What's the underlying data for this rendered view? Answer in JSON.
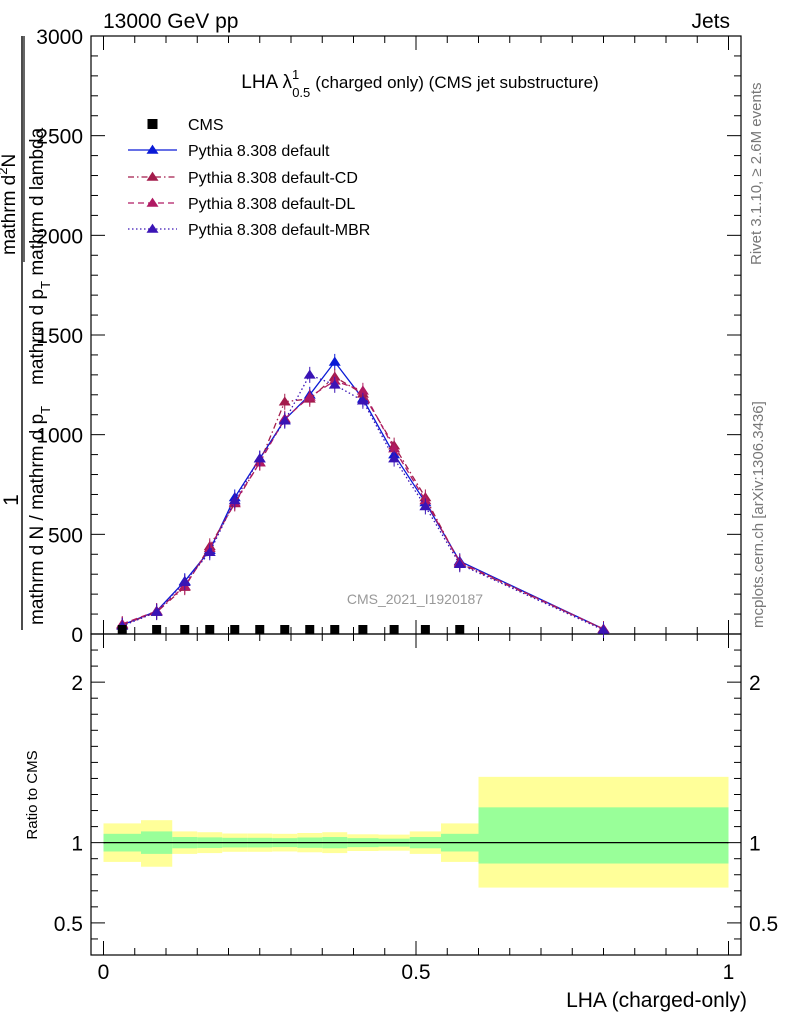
{
  "header": {
    "left": "13000 GeV pp",
    "right": "Jets"
  },
  "side_texts": {
    "rivet": "Rivet 3.1.10, ≥ 2.6M events",
    "mcplots": "mcplots.cern.ch [arXiv:1306.3436]"
  },
  "watermark": "CMS_2021_I1920187",
  "chart_data": [
    {
      "type": "line",
      "title": "LHA λ",
      "title_sup": "1",
      "title_sub": "0.5",
      "title_suffix": "(charged only) (CMS jet substructure)",
      "xlabel": "LHA (charged-only)",
      "ylabel": {
        "frac_numerator_a": "1",
        "frac_denominator_a": "mathrm d N / mathrm d p",
        "frac_denominator_a_sub": "T",
        "frac_numerator_b": "mathrm d",
        "frac_numerator_b_sup": "2",
        "frac_numerator_b_tail": "N",
        "frac_denominator_b": "mathrm d p",
        "frac_denominator_b_sub": "T",
        "frac_denominator_b_tail": " mathrm d lambda"
      },
      "xlim": [
        -0.02,
        1.02
      ],
      "ylim": [
        0,
        3000
      ],
      "x_ticks": [
        0,
        0.5,
        1
      ],
      "x_tick_labels": [
        "0",
        "0.5",
        "1"
      ],
      "y_ticks": [
        0,
        500,
        1000,
        1500,
        2000,
        2500,
        3000
      ],
      "y_tick_labels": [
        "0",
        "500",
        "1000",
        "1500",
        "2000",
        "2500",
        "3000"
      ],
      "legend": [
        {
          "name": "CMS",
          "color": "#000000",
          "dash": "none",
          "marker": "square"
        },
        {
          "name": "Pythia 8.308 default",
          "color": "#0a1ad6",
          "dash": "none",
          "marker": "triangle"
        },
        {
          "name": "Pythia 8.308 default-CD",
          "color": "#a31c4c",
          "dash": "6,3,1.5,3",
          "marker": "triangle"
        },
        {
          "name": "Pythia 8.308 default-DL",
          "color": "#b01a63",
          "dash": "6,4",
          "marker": "triangle"
        },
        {
          "name": "Pythia 8.308 default-MBR",
          "color": "#3a14b5",
          "dash": "1.5,2.5",
          "marker": "triangle"
        }
      ],
      "cms": {
        "x": [
          0.03,
          0.085,
          0.13,
          0.17,
          0.21,
          0.25,
          0.29,
          0.33,
          0.37,
          0.415,
          0.465,
          0.515,
          0.57
        ],
        "y": [
          0,
          0,
          0,
          0,
          0,
          0,
          0,
          0,
          0,
          0,
          0,
          0,
          0
        ]
      },
      "series": [
        {
          "name": "Pythia 8.308 default",
          "x": [
            0.03,
            0.085,
            0.13,
            0.17,
            0.21,
            0.25,
            0.29,
            0.33,
            0.37,
            0.415,
            0.465,
            0.515,
            0.57,
            0.8
          ],
          "y": [
            45,
            115,
            265,
            420,
            685,
            880,
            1075,
            1200,
            1365,
            1180,
            900,
            660,
            365,
            25
          ]
        },
        {
          "name": "Pythia 8.308 default-CD",
          "x": [
            0.03,
            0.085,
            0.13,
            0.17,
            0.21,
            0.25,
            0.29,
            0.33,
            0.37,
            0.415,
            0.465,
            0.515,
            0.57,
            0.8
          ],
          "y": [
            45,
            110,
            235,
            440,
            655,
            860,
            1165,
            1180,
            1290,
            1205,
            945,
            685,
            355,
            25
          ]
        },
        {
          "name": "Pythia 8.308 default-DL",
          "x": [
            0.03,
            0.085,
            0.13,
            0.17,
            0.21,
            0.25,
            0.29,
            0.33,
            0.37,
            0.415,
            0.465,
            0.515,
            0.57,
            0.8
          ],
          "y": [
            50,
            115,
            240,
            430,
            660,
            860,
            1080,
            1190,
            1270,
            1220,
            930,
            670,
            360,
            25
          ]
        },
        {
          "name": "Pythia 8.308 default-MBR",
          "x": [
            0.03,
            0.085,
            0.13,
            0.17,
            0.21,
            0.25,
            0.29,
            0.33,
            0.37,
            0.415,
            0.465,
            0.515,
            0.57,
            0.8
          ],
          "y": [
            40,
            110,
            260,
            410,
            670,
            880,
            1070,
            1300,
            1250,
            1170,
            880,
            640,
            350,
            20
          ]
        }
      ]
    },
    {
      "type": "area",
      "ylabel": "Ratio to CMS",
      "xlim": [
        -0.02,
        1.02
      ],
      "ylim": [
        0.3,
        2.3
      ],
      "y_ticks": [
        0.5,
        1,
        2
      ],
      "y_tick_labels": [
        "0.5",
        "1",
        "2"
      ],
      "band_colors": {
        "outer": "#ffff99",
        "inner": "#99ff99"
      },
      "bins": [
        {
          "x0": 0.0,
          "x1": 0.06,
          "inner": [
            0.945,
            1.055
          ],
          "outer": [
            0.88,
            1.12
          ]
        },
        {
          "x0": 0.06,
          "x1": 0.11,
          "inner": [
            0.93,
            1.07
          ],
          "outer": [
            0.85,
            1.14
          ]
        },
        {
          "x0": 0.11,
          "x1": 0.15,
          "inner": [
            0.965,
            1.035
          ],
          "outer": [
            0.93,
            1.07
          ]
        },
        {
          "x0": 0.15,
          "x1": 0.19,
          "inner": [
            0.967,
            1.033
          ],
          "outer": [
            0.935,
            1.065
          ]
        },
        {
          "x0": 0.19,
          "x1": 0.23,
          "inner": [
            0.97,
            1.03
          ],
          "outer": [
            0.943,
            1.057
          ]
        },
        {
          "x0": 0.23,
          "x1": 0.27,
          "inner": [
            0.97,
            1.03
          ],
          "outer": [
            0.943,
            1.057
          ]
        },
        {
          "x0": 0.27,
          "x1": 0.31,
          "inner": [
            0.972,
            1.028
          ],
          "outer": [
            0.945,
            1.055
          ]
        },
        {
          "x0": 0.31,
          "x1": 0.35,
          "inner": [
            0.968,
            1.032
          ],
          "outer": [
            0.94,
            1.06
          ]
        },
        {
          "x0": 0.35,
          "x1": 0.39,
          "inner": [
            0.965,
            1.035
          ],
          "outer": [
            0.935,
            1.065
          ]
        },
        {
          "x0": 0.39,
          "x1": 0.44,
          "inner": [
            0.972,
            1.028
          ],
          "outer": [
            0.948,
            1.052
          ]
        },
        {
          "x0": 0.44,
          "x1": 0.49,
          "inner": [
            0.975,
            1.025
          ],
          "outer": [
            0.95,
            1.05
          ]
        },
        {
          "x0": 0.49,
          "x1": 0.54,
          "inner": [
            0.965,
            1.035
          ],
          "outer": [
            0.93,
            1.07
          ]
        },
        {
          "x0": 0.54,
          "x1": 0.6,
          "inner": [
            0.945,
            1.055
          ],
          "outer": [
            0.88,
            1.12
          ]
        },
        {
          "x0": 0.6,
          "x1": 1.0,
          "inner": [
            0.87,
            1.22
          ],
          "outer": [
            0.72,
            1.41
          ]
        }
      ],
      "reference_line": 1
    }
  ]
}
